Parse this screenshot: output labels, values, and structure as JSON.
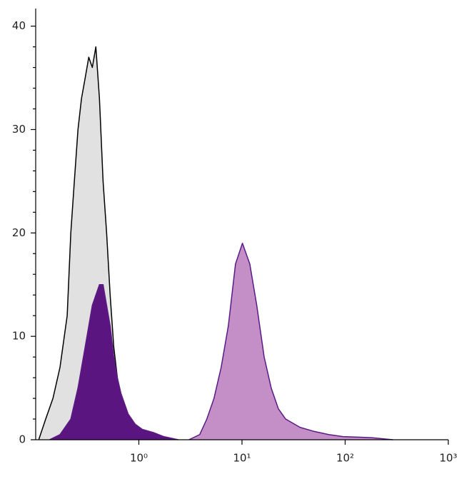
{
  "chart_data": {
    "type": "area",
    "xscale": "log",
    "xlim": [
      0.1,
      1000
    ],
    "xticks": [
      {
        "value": 1,
        "label": "10⁰"
      },
      {
        "value": 10,
        "label": "10¹"
      },
      {
        "value": 100,
        "label": "10²"
      },
      {
        "value": 1000,
        "label": "10³"
      }
    ],
    "ylim": [
      0,
      41.7
    ],
    "yticks": [
      0,
      10,
      20,
      30,
      40
    ],
    "yticks_minor": [
      2,
      4,
      6,
      8,
      12,
      14,
      16,
      18,
      22,
      24,
      26,
      28,
      32,
      34,
      36,
      38
    ],
    "series": [
      {
        "color": "#000000",
        "fill": "#e1e1e1",
        "x": [
          0.107,
          0.125,
          0.147,
          0.172,
          0.202,
          0.219,
          0.237,
          0.257,
          0.278,
          0.302,
          0.327,
          0.354,
          0.383,
          0.415,
          0.45,
          0.487,
          0.527,
          0.571,
          0.619,
          0.67,
          0.787,
          0.923
        ],
        "values": [
          0,
          2,
          4,
          7,
          12,
          20,
          25,
          30,
          33,
          35,
          37,
          36,
          38,
          33,
          25,
          20,
          14,
          9,
          6,
          3,
          1,
          0
        ]
      },
      {
        "color": "#5a1a86",
        "fill": "#c48fc6",
        "x": [
          3.06,
          3.89,
          4.56,
          5.35,
          6.28,
          7.37,
          8.65,
          10.1,
          11.9,
          13.9,
          16.4,
          19.2,
          22.5,
          26.5,
          36.5,
          50.3,
          69.3,
          95.5,
          181,
          291
        ],
        "values": [
          0,
          0.5,
          2,
          4,
          7,
          11,
          17,
          19,
          17,
          13,
          8,
          5,
          3,
          2,
          1.2,
          0.8,
          0.5,
          0.3,
          0.2,
          0
        ]
      },
      {
        "color": "#5e1a84",
        "fill": "#5a1580",
        "x": [
          0.136,
          0.172,
          0.219,
          0.257,
          0.302,
          0.354,
          0.415,
          0.45,
          0.487,
          0.527,
          0.571,
          0.619,
          0.67,
          0.726,
          0.787,
          0.923,
          1.08,
          1.38,
          1.75,
          2.41
        ],
        "values": [
          0,
          0.5,
          2,
          5,
          9,
          13,
          15,
          15,
          13,
          11,
          8,
          6,
          4.5,
          3.5,
          2.5,
          1.5,
          1,
          0.7,
          0.3,
          0
        ]
      }
    ]
  }
}
